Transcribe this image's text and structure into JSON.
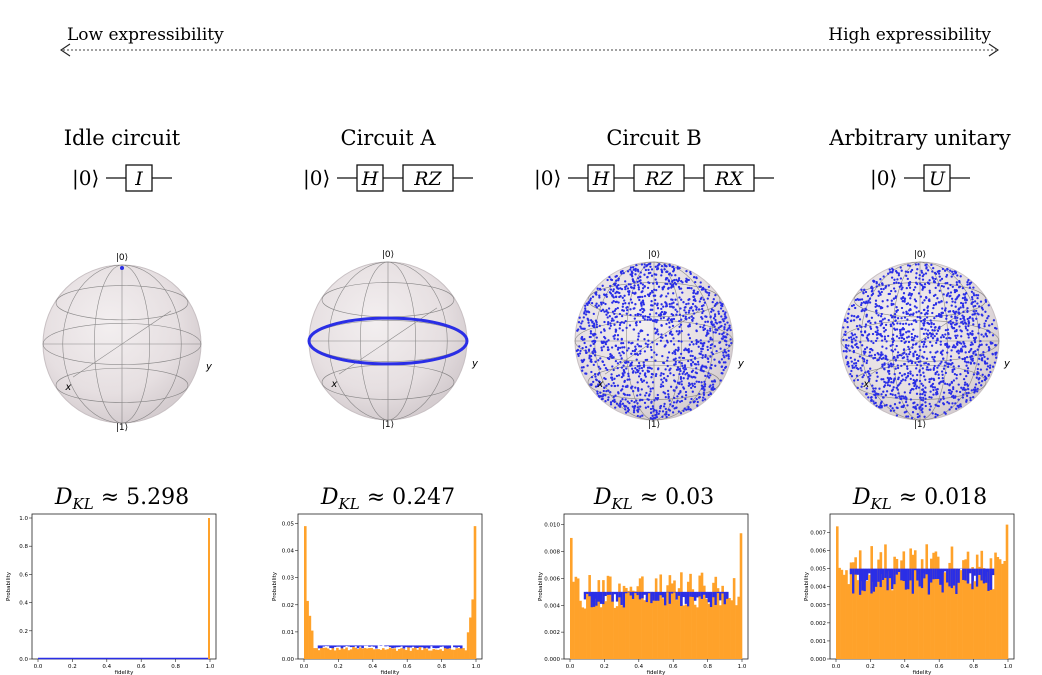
{
  "scale": {
    "low_label": "Low expressibility",
    "high_label": "High expressibility"
  },
  "panels": [
    {
      "title": "Idle circuit",
      "ket": "|0⟩",
      "gates": [
        "I"
      ],
      "bloch_state": "point_at_zero",
      "kl_symbol": "D",
      "kl_subscript": "KL",
      "kl_approx": "≈",
      "kl_value": "5.298",
      "hist": {
        "yticks": [
          "0.0",
          "0.2",
          "0.4",
          "0.6",
          "0.8",
          "1.0"
        ],
        "ymax": 1.0,
        "spike_value": 1.0,
        "baseline_value": 0.0,
        "orange_level": 0.0,
        "band_width": 0.0
      }
    },
    {
      "title": "Circuit A",
      "ket": "|0⟩",
      "gates": [
        "H",
        "RZ"
      ],
      "bloch_state": "equator_ring",
      "kl_symbol": "D",
      "kl_subscript": "KL",
      "kl_approx": "≈",
      "kl_value": "0.247",
      "hist": {
        "yticks": [
          "0.00",
          "0.01",
          "0.02",
          "0.03",
          "0.04",
          "0.05"
        ],
        "ymax": 0.052,
        "spike_value": 0.049,
        "baseline_value": 0.005,
        "orange_level": 0.0,
        "band_width": 0.0012
      }
    },
    {
      "title": "Circuit B",
      "ket": "|0⟩",
      "gates": [
        "H",
        "RZ",
        "RX"
      ],
      "bloch_state": "full_sphere",
      "kl_symbol": "D",
      "kl_subscript": "KL",
      "kl_approx": "≈",
      "kl_value": "0.03",
      "hist": {
        "yticks": [
          "0.000",
          "0.002",
          "0.004",
          "0.006",
          "0.008",
          "0.010"
        ],
        "ymax": 0.0105,
        "spike_value": 0.0102,
        "baseline_value": 0.005,
        "orange_level": 0.005,
        "band_width": 0.0012
      }
    },
    {
      "title": "Arbitrary unitary",
      "ket": "|0⟩",
      "gates": [
        "U"
      ],
      "bloch_state": "full_sphere_uniform",
      "kl_symbol": "D",
      "kl_subscript": "KL",
      "kl_approx": "≈",
      "kl_value": "0.018",
      "hist": {
        "yticks": [
          "0.000",
          "0.001",
          "0.002",
          "0.003",
          "0.004",
          "0.005",
          "0.006",
          "0.007"
        ],
        "ymax": 0.0078,
        "spike_value": 0.0075,
        "baseline_value": 0.005,
        "orange_level": 0.005,
        "band_width": 0.0015
      }
    }
  ],
  "bloch_labels": {
    "zero": "|0⟩",
    "one": "|1⟩",
    "x": "x",
    "y": "y"
  },
  "hist_axes": {
    "xlabel": "fidelity",
    "ylabel": "Probability",
    "xticks": [
      "0.0",
      "0.2",
      "0.4",
      "0.6",
      "0.8",
      "1.0"
    ]
  },
  "colors": {
    "orange": "#ffa22a",
    "blue": "#2a2ee6",
    "sphere": "#e9e3e5",
    "sphere_edge": "#c8c0c3",
    "grid": "#6a6a6a"
  }
}
